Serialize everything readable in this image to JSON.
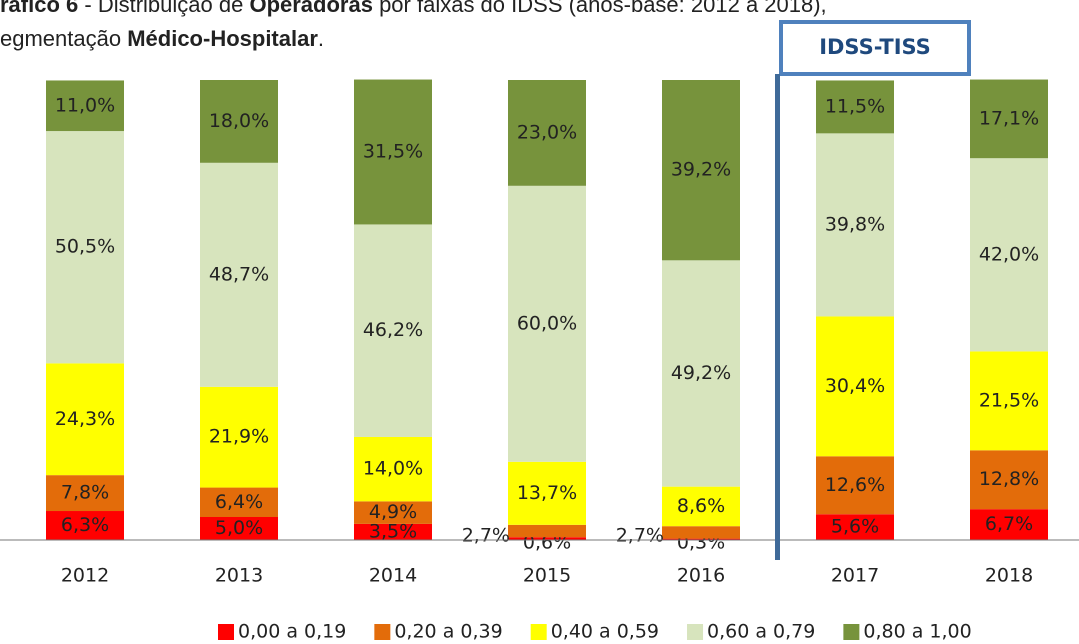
{
  "chart_data": {
    "type": "stacked_bar",
    "title_parts": [
      "ráfico 6",
      " - Distribuição de ",
      "Operadoras",
      " por faixas do IDSS (anos-base: 2012 a 2018),"
    ],
    "subtitle_parts": [
      "egmentação ",
      "Médico-Hospitalar",
      "."
    ],
    "annotation": "IDSS-TISS",
    "categories": [
      "2012",
      "2013",
      "2014",
      "2015",
      "2016",
      "2017",
      "2018"
    ],
    "ylim": [
      0,
      100
    ],
    "legend": "bottom",
    "series": [
      {
        "name": "0,00 a 0,19",
        "color": "#ff0000",
        "values": [
          6.3,
          5.0,
          3.5,
          0.6,
          0.3,
          5.6,
          6.7
        ],
        "value_labels": [
          "6,3%",
          "5,0%",
          "3,5%",
          "0,6%",
          "0,3%",
          "5,6%",
          "6,7%"
        ]
      },
      {
        "name": "0,20 a 0,39",
        "color": "#e36c0a",
        "values": [
          7.8,
          6.4,
          4.9,
          2.7,
          2.7,
          12.6,
          12.8
        ],
        "value_labels": [
          "7,8%",
          "6,4%",
          "4,9%",
          "2,7%",
          "2,7%",
          "12,6%",
          "12,8%"
        ]
      },
      {
        "name": "0,40 a 0,59",
        "color": "#ffff00",
        "values": [
          24.3,
          21.9,
          14.0,
          13.7,
          8.6,
          30.4,
          21.5
        ],
        "value_labels": [
          "24,3%",
          "21,9%",
          "14,0%",
          "13,7%",
          "8,6%",
          "30,4%",
          "21,5%"
        ]
      },
      {
        "name": "0,60 a 0,79",
        "color": "#d7e4bd",
        "values": [
          50.5,
          48.7,
          46.2,
          60.0,
          49.2,
          39.8,
          42.0
        ],
        "value_labels": [
          "50,5%",
          "48,7%",
          "46,2%",
          "60,0%",
          "49,2%",
          "39,8%",
          "42,0%"
        ]
      },
      {
        "name": "0,80 a 1,00",
        "color": "#77933c",
        "values": [
          11.0,
          18.0,
          31.5,
          23.0,
          39.2,
          11.5,
          17.1
        ],
        "value_labels": [
          "11,0%",
          "18,0%",
          "31,5%",
          "23,0%",
          "39,2%",
          "11,5%",
          "17,1%"
        ]
      }
    ]
  }
}
